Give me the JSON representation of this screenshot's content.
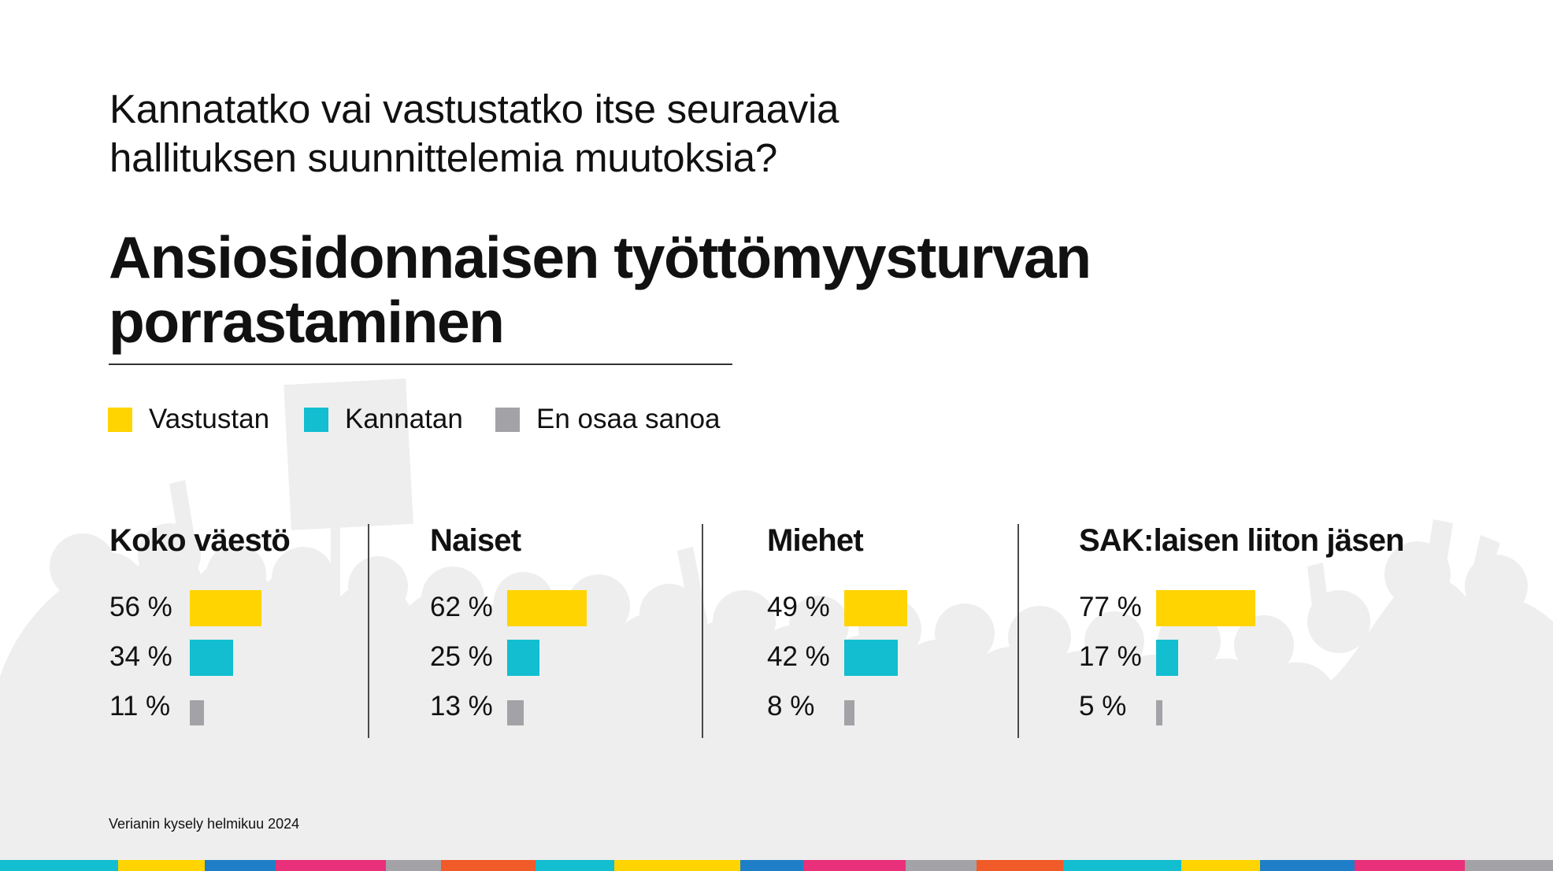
{
  "question": {
    "lines": [
      "Kannatatko vai vastustatko itse seuraavia",
      "hallituksen suunnittelemia muutoksia?"
    ]
  },
  "title": {
    "lines": [
      "Ansiosidonnaisen työttömyysturvan",
      "porrastaminen"
    ]
  },
  "legend": [
    {
      "label": "Vastustan",
      "color": "#FFD400"
    },
    {
      "label": "Kannatan",
      "color": "#12BED0"
    },
    {
      "label": "En osaa sanoa",
      "color": "#A2A2A7"
    }
  ],
  "chart_data": {
    "type": "bar",
    "orientation": "horizontal",
    "unit": "%",
    "series_names": [
      "Vastustan",
      "Kannatan",
      "En osaa sanoa"
    ],
    "groups": [
      {
        "name": "Koko väestö",
        "values": [
          56,
          34,
          11
        ],
        "labels": [
          "56 %",
          "34 %",
          "11 %"
        ]
      },
      {
        "name": "Naiset",
        "values": [
          62,
          25,
          13
        ],
        "labels": [
          "62 %",
          "25 %",
          "13 %"
        ]
      },
      {
        "name": "Miehet",
        "values": [
          49,
          42,
          8
        ],
        "labels": [
          "49 %",
          "42 %",
          "8 %"
        ]
      },
      {
        "name": "SAK:laisen liiton jäsen",
        "values": [
          77,
          17,
          5
        ],
        "labels": [
          "77 %",
          "17 %",
          "5 %"
        ]
      }
    ]
  },
  "colors": {
    "vastustan": "#FFD400",
    "kannatan": "#12BED0",
    "en_osaa_sanoa": "#A2A2A7",
    "background_silhouette": "#EEEEEE",
    "strip": [
      "#12BED0",
      "#FFD400",
      "#1E7FC8",
      "#E8317A",
      "#A2A2A7",
      "#F15A29"
    ]
  },
  "source": "Verianin kysely helmikuu 2024"
}
